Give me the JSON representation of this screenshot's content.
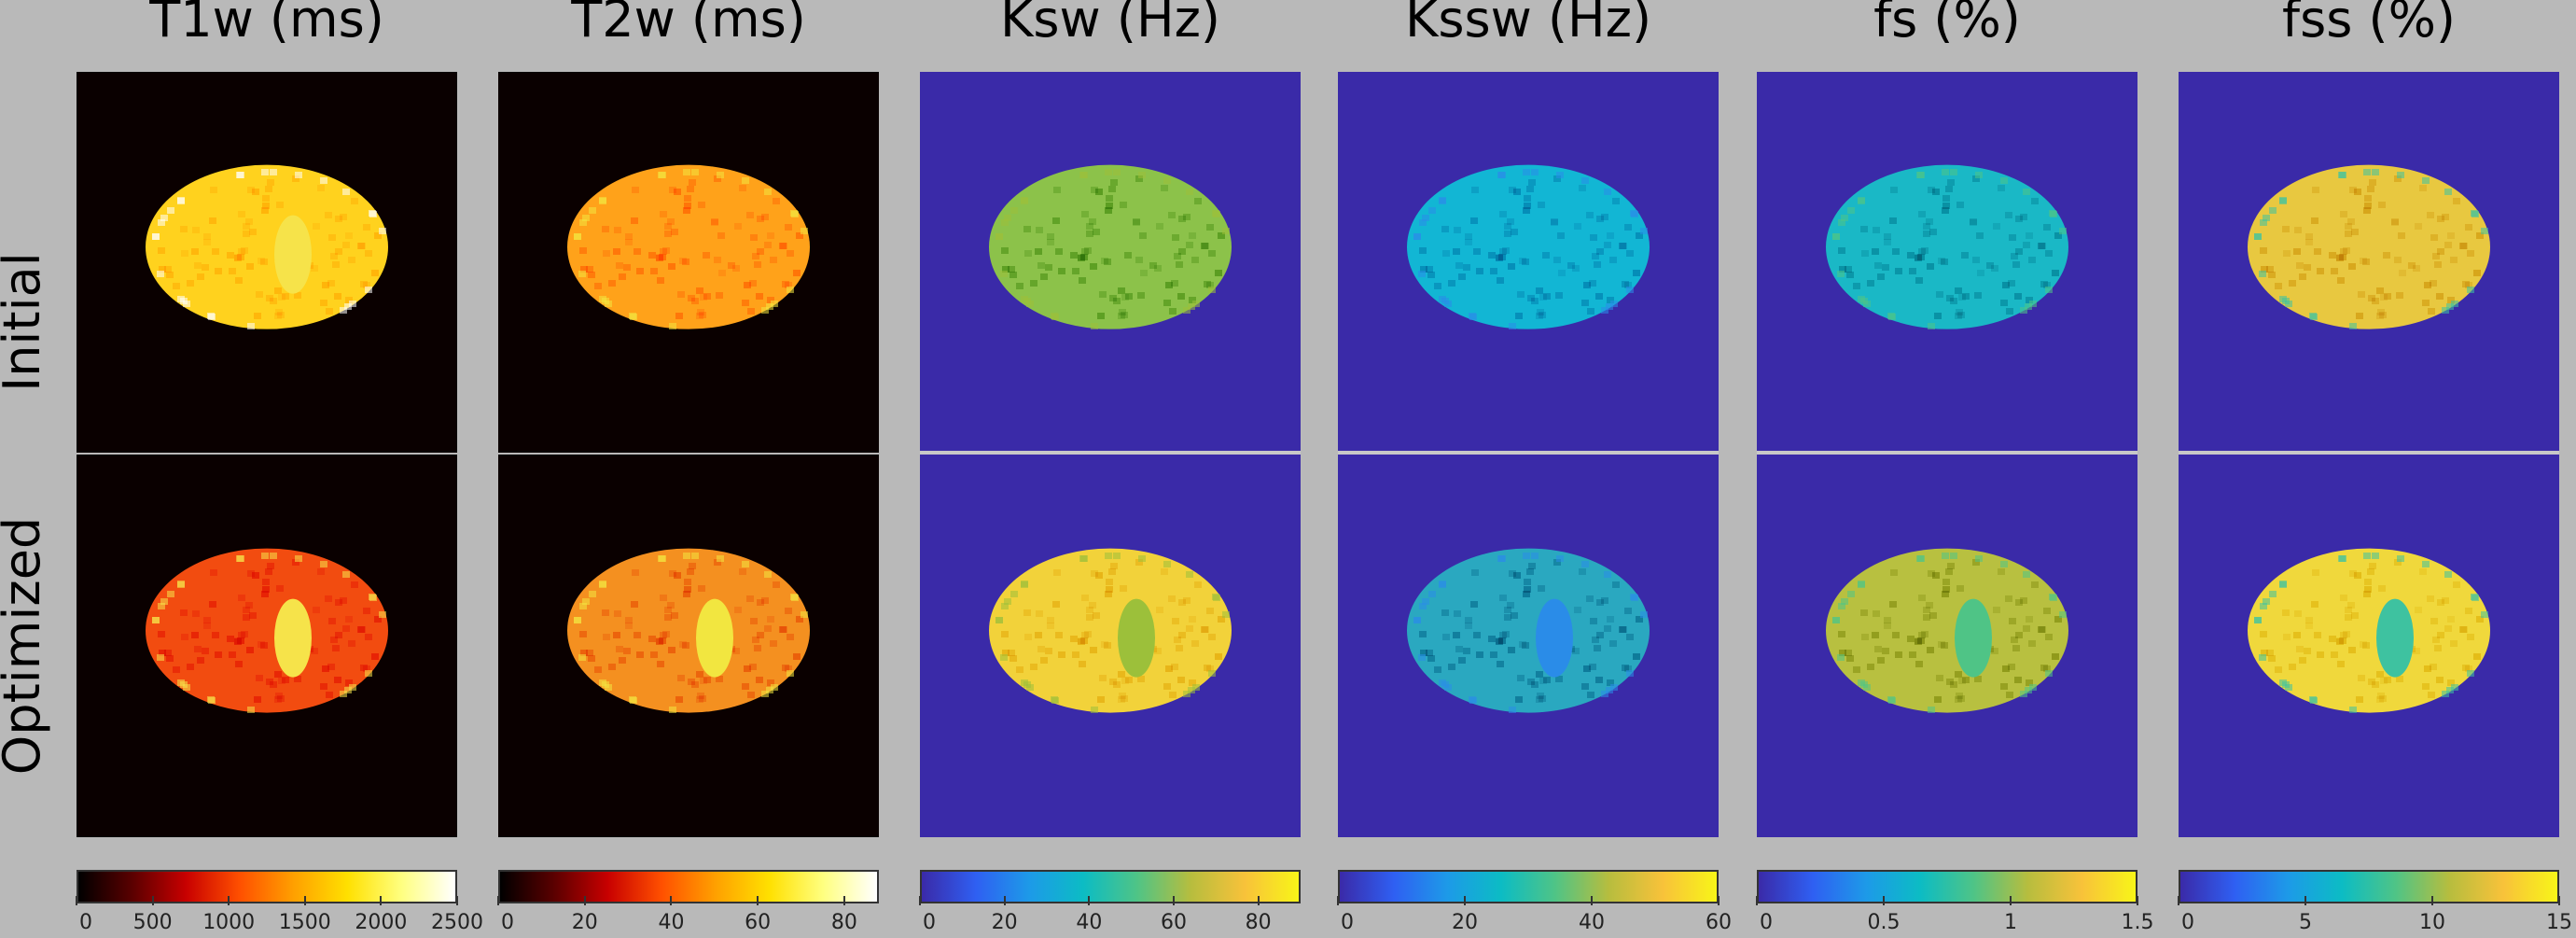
{
  "rows": [
    {
      "label": "Initial"
    },
    {
      "label": "Optimized"
    }
  ],
  "panels": [
    {
      "title": "T1w (ms)",
      "colormap": "hot",
      "background": "#0a0000",
      "initial_fill": "#ffd21e",
      "optimized_fill": "#f24c10",
      "optimized_spot": "#f6e34a",
      "colorbar": [
        "#000000",
        "#5a0000",
        "#c80000",
        "#ff5000",
        "#ffa000",
        "#ffe000",
        "#ffff80",
        "#ffffff"
      ],
      "ticks": [
        "0",
        "500",
        "1000",
        "1500",
        "2000",
        "2500"
      ],
      "tick_values": [
        0,
        500,
        1000,
        1500,
        2000,
        2500
      ],
      "range": [
        0,
        2500
      ]
    },
    {
      "title": "T2w (ms)",
      "colormap": "hot",
      "background": "#0a0000",
      "initial_fill": "#ffa21a",
      "optimized_fill": "#f49020",
      "optimized_spot": "#f2e640",
      "colorbar": [
        "#000000",
        "#5a0000",
        "#c80000",
        "#ff5000",
        "#ffa000",
        "#ffe000",
        "#ffff80",
        "#ffffff"
      ],
      "ticks": [
        "0",
        "20",
        "40",
        "60",
        "80"
      ],
      "tick_values": [
        0,
        20,
        40,
        60,
        80
      ],
      "range": [
        0,
        88
      ]
    },
    {
      "title": "Ksw (Hz)",
      "colormap": "parula",
      "background": "#3a2aa8",
      "initial_fill": "#8cc24a",
      "optimized_fill": "#f2d23a",
      "optimized_spot": "#9cc03a",
      "colorbar": [
        "#3a2aa8",
        "#2f5ff2",
        "#1d9ae8",
        "#0cbcc4",
        "#4fc486",
        "#b7bd3e",
        "#f8c23a",
        "#f8f518"
      ],
      "ticks": [
        "0",
        "20",
        "40",
        "60",
        "80"
      ],
      "tick_values": [
        0,
        20,
        40,
        60,
        80
      ],
      "range": [
        0,
        90
      ]
    },
    {
      "title": "Kssw (Hz)",
      "colormap": "parula",
      "background": "#3a2aa8",
      "initial_fill": "#12b6d4",
      "optimized_fill": "#2aa8c0",
      "optimized_spot": "#2a8ce8",
      "colorbar": [
        "#3a2aa8",
        "#2f5ff2",
        "#1d9ae8",
        "#0cbcc4",
        "#4fc486",
        "#b7bd3e",
        "#f8c23a",
        "#f8f518"
      ],
      "ticks": [
        "0",
        "20",
        "40",
        "60"
      ],
      "tick_values": [
        0,
        20,
        40,
        60
      ],
      "range": [
        0,
        60
      ]
    },
    {
      "title": "fs (%)",
      "colormap": "parula",
      "background": "#3a2aa8",
      "initial_fill": "#1ab8c6",
      "optimized_fill": "#b8c040",
      "optimized_spot": "#4fc486",
      "colorbar": [
        "#3a2aa8",
        "#2f5ff2",
        "#1d9ae8",
        "#0cbcc4",
        "#4fc486",
        "#b7bd3e",
        "#f8c23a",
        "#f8f518"
      ],
      "ticks": [
        "0",
        "0.5",
        "1",
        "1.5"
      ],
      "tick_values": [
        0,
        0.5,
        1,
        1.5
      ],
      "range": [
        0,
        1.5
      ]
    },
    {
      "title": "fss (%)",
      "colormap": "parula",
      "background": "#3a2aa8",
      "initial_fill": "#e8c840",
      "optimized_fill": "#f0d83c",
      "optimized_spot": "#3ec2a0",
      "colorbar": [
        "#3a2aa8",
        "#2f5ff2",
        "#1d9ae8",
        "#0cbcc4",
        "#4fc486",
        "#b7bd3e",
        "#f8c23a",
        "#f8f518"
      ],
      "ticks": [
        "0",
        "5",
        "10",
        "15"
      ],
      "tick_values": [
        0,
        5,
        10,
        15
      ],
      "range": [
        0,
        15
      ]
    }
  ]
}
